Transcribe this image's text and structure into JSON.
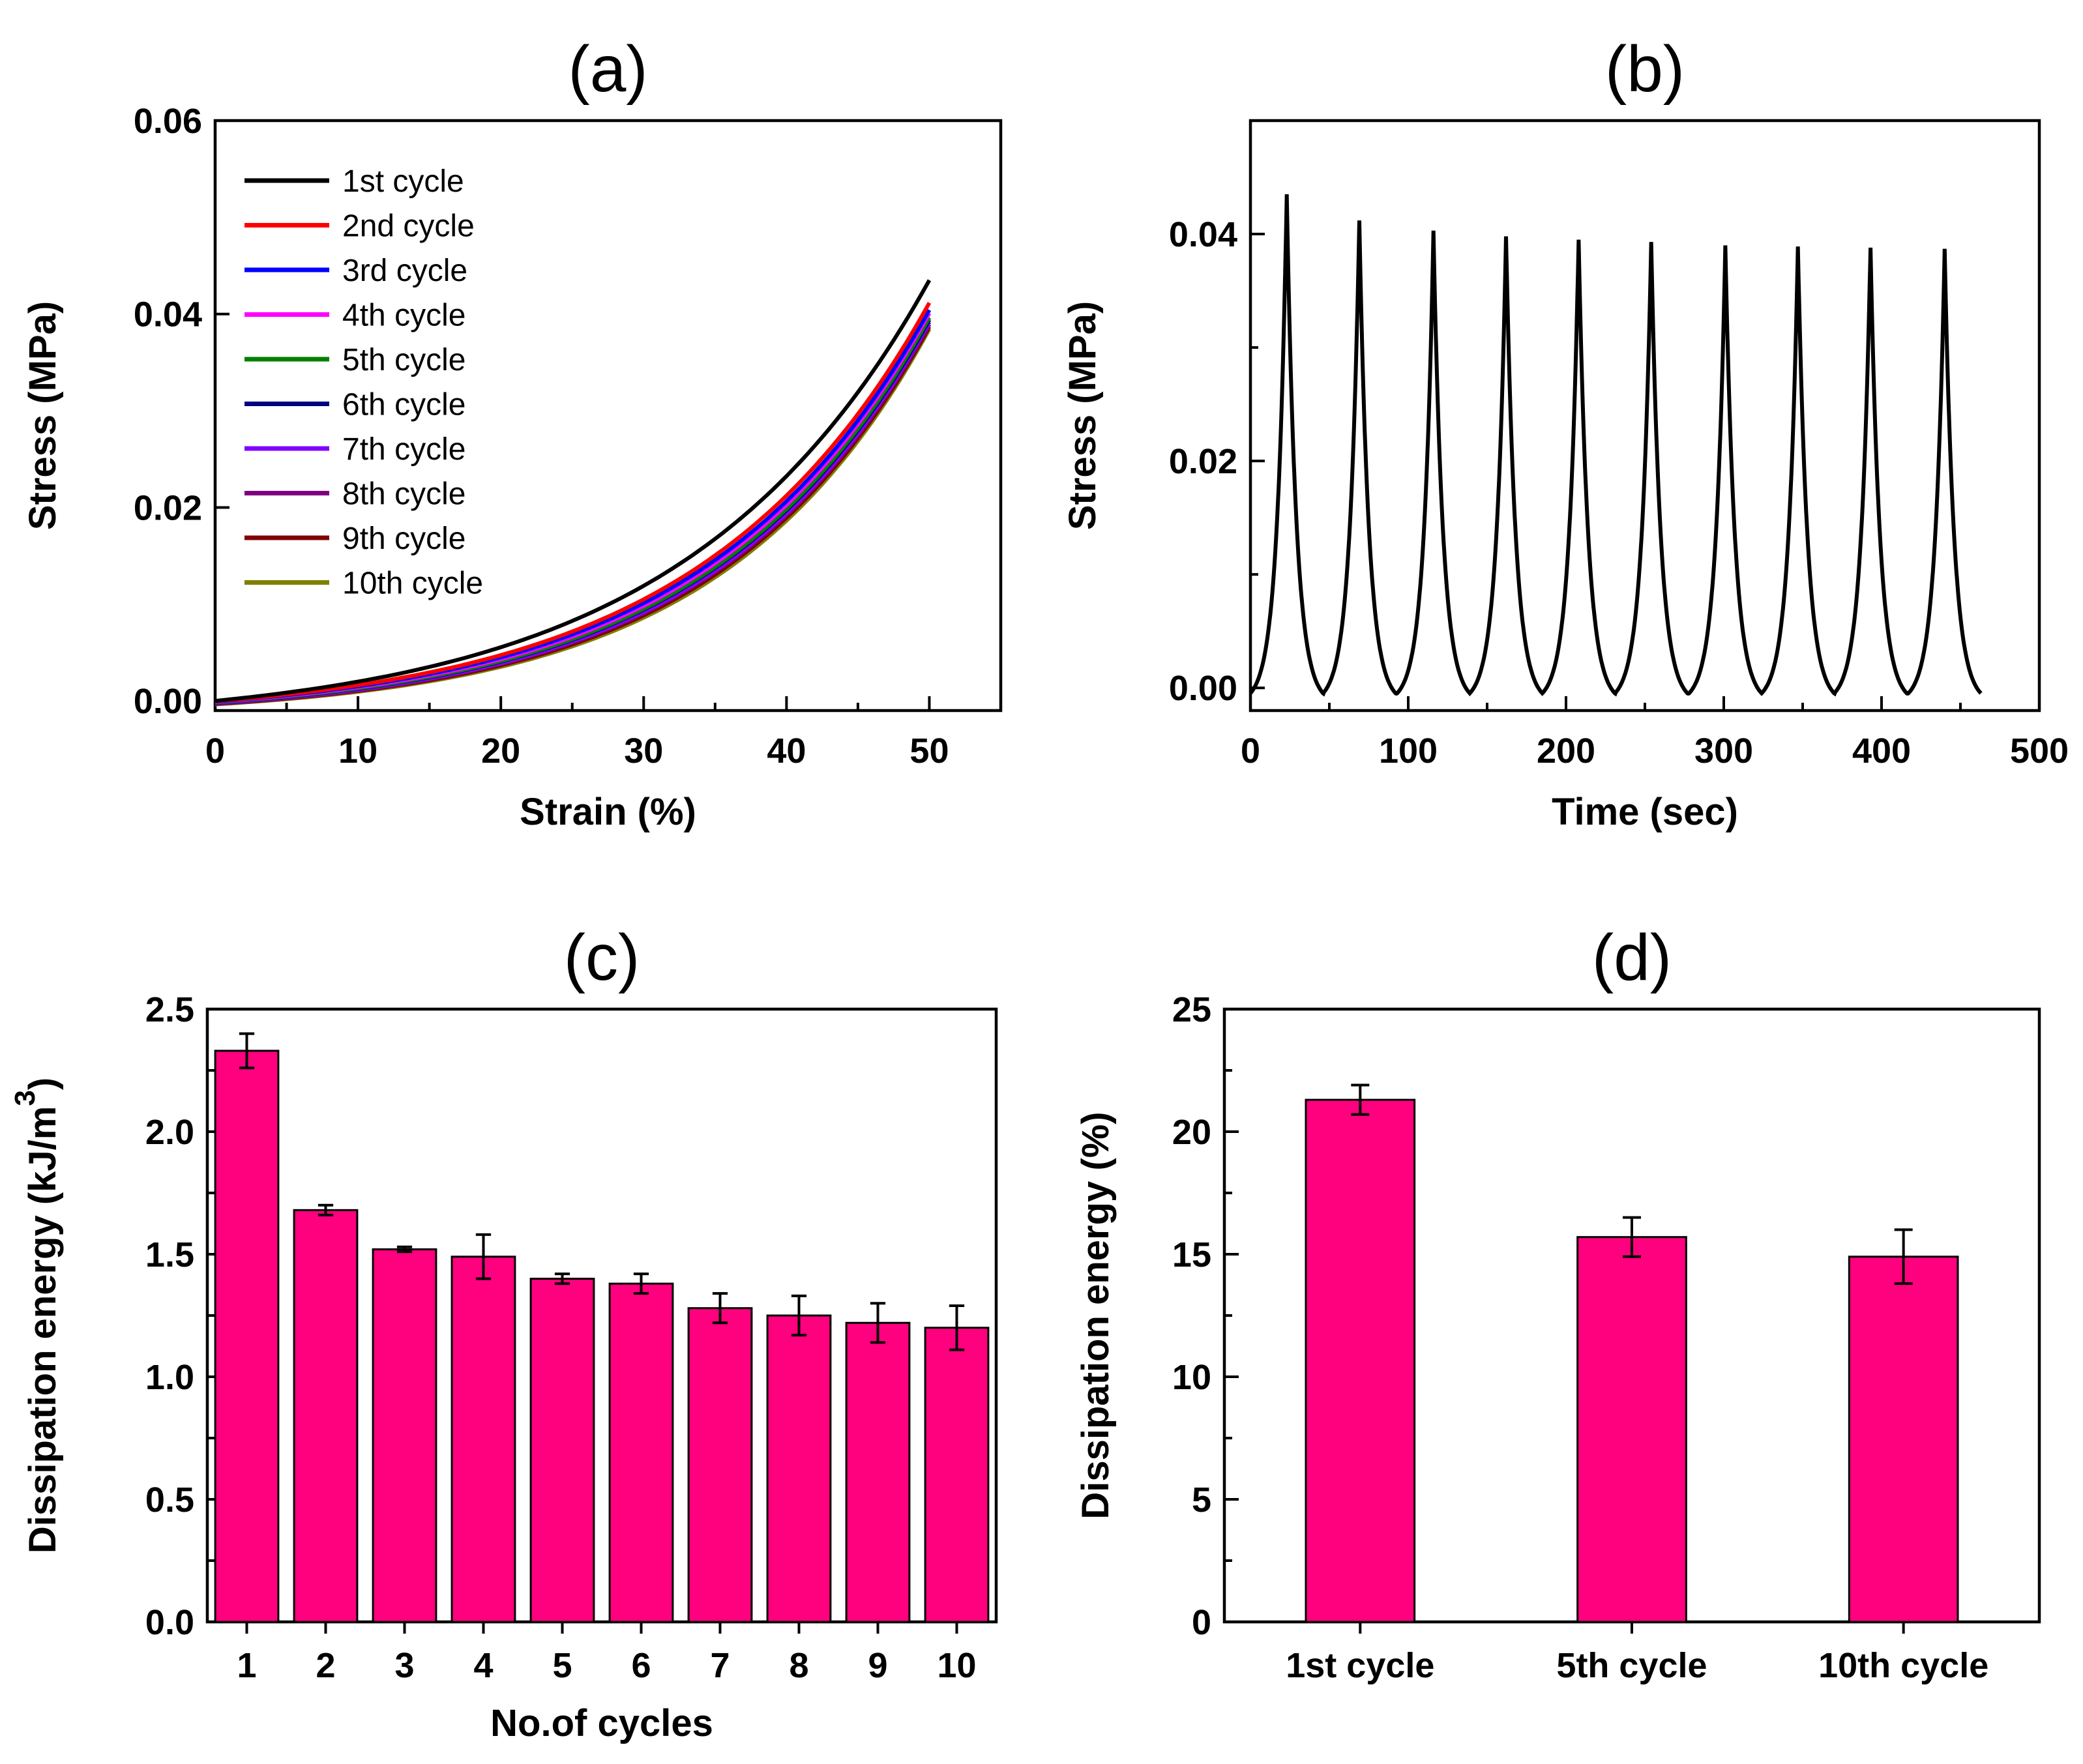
{
  "chart_data": [
    {
      "id": "a",
      "type": "line",
      "title": "(a)",
      "xlabel": "Strain (%)",
      "ylabel": "Stress (MPa)",
      "xlim": [
        0,
        55
      ],
      "ylim": [
        -0.001,
        0.06
      ],
      "xticks": [
        0,
        10,
        20,
        30,
        40,
        50
      ],
      "xtick_labels": [
        "0",
        "10",
        "20",
        "30",
        "40",
        "50"
      ],
      "yticks": [
        0.0,
        0.02,
        0.04,
        0.06
      ],
      "ytick_labels": [
        "0.00",
        "0.02",
        "0.04",
        "0.06"
      ],
      "legend_position": "top-left",
      "curve_model": "stress = a * (exp(k * strain) - 1) for strain in [0, 50]",
      "series": [
        {
          "name": "1st cycle",
          "color": "#000000",
          "peak": 0.0435,
          "k": 0.058
        },
        {
          "name": "2nd cycle",
          "color": "#ff0000",
          "peak": 0.0412,
          "k": 0.062
        },
        {
          "name": "3rd cycle",
          "color": "#0000ff",
          "peak": 0.0405,
          "k": 0.063
        },
        {
          "name": "4th cycle",
          "color": "#ff00ff",
          "peak": 0.0402,
          "k": 0.064
        },
        {
          "name": "5th cycle",
          "color": "#008000",
          "peak": 0.0398,
          "k": 0.065
        },
        {
          "name": "6th cycle",
          "color": "#000080",
          "peak": 0.0396,
          "k": 0.065
        },
        {
          "name": "7th cycle",
          "color": "#8000ff",
          "peak": 0.0394,
          "k": 0.066
        },
        {
          "name": "8th cycle",
          "color": "#800080",
          "peak": 0.0392,
          "k": 0.066
        },
        {
          "name": "9th cycle",
          "color": "#800000",
          "peak": 0.039,
          "k": 0.067
        },
        {
          "name": "10th cycle",
          "color": "#808000",
          "peak": 0.0388,
          "k": 0.068
        }
      ]
    },
    {
      "id": "b",
      "type": "line",
      "title": "(b)",
      "xlabel": "Time (sec)",
      "ylabel": "Stress (MPa)",
      "xlim": [
        0,
        500
      ],
      "ylim": [
        -0.002,
        0.05
      ],
      "xticks": [
        0,
        100,
        200,
        300,
        400,
        500
      ],
      "xtick_labels": [
        "0",
        "100",
        "200",
        "300",
        "400",
        "500"
      ],
      "yticks": [
        0.0,
        0.02,
        0.04
      ],
      "ytick_labels": [
        "0.00",
        "0.02",
        "0.04"
      ],
      "minor_yticks": [
        0.01,
        0.03
      ],
      "curve_model": "ten loading/unloading cycles, each a symmetric exponential spike from about -0.0005 MPa to the peak",
      "cycle_period_sec": 46.3,
      "peak_times_sec": [
        23,
        69,
        116,
        162,
        208,
        254,
        301,
        347,
        393,
        440
      ],
      "peak_values": [
        0.0435,
        0.0412,
        0.0403,
        0.0398,
        0.0395,
        0.0393,
        0.039,
        0.0389,
        0.0388,
        0.0387
      ],
      "end_time_sec": 463,
      "series": [
        {
          "name": "Stress",
          "color": "#000000"
        }
      ]
    },
    {
      "id": "c",
      "type": "bar",
      "title": "(c)",
      "xlabel": "No.of cycles",
      "ylabel": "Dissipation energy (kJ/m",
      "ylabel_superscript": "3",
      "ylabel_suffix": ")",
      "categories": [
        "1",
        "2",
        "3",
        "4",
        "5",
        "6",
        "7",
        "8",
        "9",
        "10"
      ],
      "values": [
        2.33,
        1.68,
        1.52,
        1.49,
        1.4,
        1.38,
        1.28,
        1.25,
        1.22,
        1.2
      ],
      "errors": [
        0.07,
        0.02,
        0.01,
        0.09,
        0.02,
        0.04,
        0.06,
        0.08,
        0.08,
        0.09
      ],
      "ylim": [
        0,
        2.5
      ],
      "yticks": [
        0.0,
        0.5,
        1.0,
        1.5,
        2.0,
        2.5
      ],
      "ytick_labels": [
        "0.0",
        "0.5",
        "1.0",
        "1.5",
        "2.0",
        "2.5"
      ],
      "minor_yticks": [
        0.25,
        0.75,
        1.25,
        1.75,
        2.25
      ],
      "bar_color": "#ff007f"
    },
    {
      "id": "d",
      "type": "bar",
      "title": "(d)",
      "xlabel": "",
      "ylabel": "Dissipation energy (%)",
      "categories": [
        "1st cycle",
        "5th cycle",
        "10th cycle"
      ],
      "values": [
        21.3,
        15.7,
        14.9
      ],
      "errors": [
        0.6,
        0.8,
        1.1
      ],
      "ylim": [
        0,
        25
      ],
      "yticks": [
        0,
        5,
        10,
        15,
        20,
        25
      ],
      "ytick_labels": [
        "0",
        "5",
        "10",
        "15",
        "20",
        "25"
      ],
      "minor_yticks": [
        2.5,
        7.5,
        12.5,
        17.5,
        22.5
      ],
      "bar_color": "#ff007f"
    }
  ]
}
